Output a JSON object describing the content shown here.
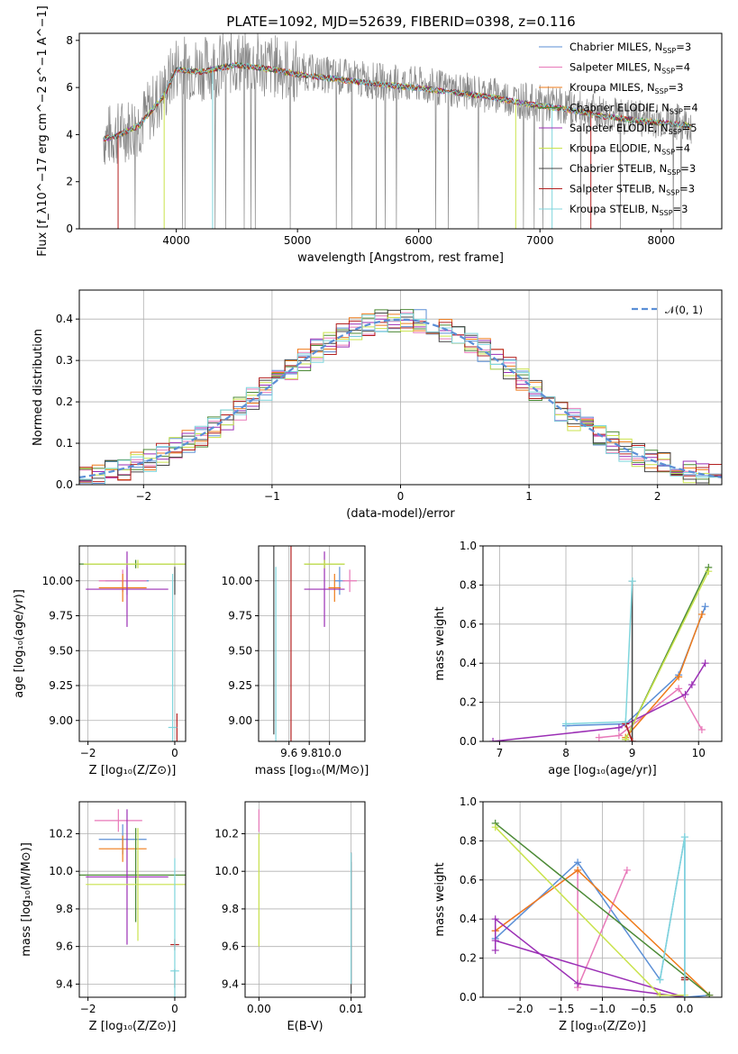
{
  "colors": {
    "Chabrier MILES": "#5b8fd6",
    "Salpeter MILES": "#e879b9",
    "Kroupa MILES": "#ef7b1a",
    "Chabrier ELODIE": "#4c8a36",
    "Salpeter ELODIE": "#9b2fb5",
    "Kroupa ELODIE": "#c9e34c",
    "Chabrier STELIB": "#444444",
    "Salpeter STELIB": "#b32020",
    "Kroupa STELIB": "#7fd6dd",
    "gauss": "#5b8fd6"
  },
  "chart_data": [
    {
      "id": "spectrum",
      "type": "line",
      "title": "PLATE=1092, MJD=52639, FIBERID=0398, z=0.116",
      "xlabel": "wavelength [Angstrom, rest frame]",
      "ylabel": "Flux [f_λ10^−17 erg cm^−2 s^−1 A^−1]",
      "xlim": [
        3200,
        8500
      ],
      "ylim": [
        0,
        8.3
      ],
      "xticks": [
        "4000",
        "5000",
        "6000",
        "7000",
        "8000"
      ],
      "yticks": [
        "0",
        "2",
        "4",
        "6",
        "8"
      ],
      "grid": false,
      "legend_position": "right",
      "legend": [
        {
          "base": "Chabrier MILES, N",
          "sub": "SSP",
          "tail": "=3"
        },
        {
          "base": "Salpeter MILES, N",
          "sub": "SSP",
          "tail": "=4"
        },
        {
          "base": "Kroupa MILES, N",
          "sub": "SSP",
          "tail": "=3"
        },
        {
          "base": "Chabrier ELODIE, N",
          "sub": "SSP",
          "tail": "=4"
        },
        {
          "base": "Salpeter ELODIE, N",
          "sub": "SSP",
          "tail": "=5"
        },
        {
          "base": "Kroupa ELODIE, N",
          "sub": "SSP",
          "tail": "=4"
        },
        {
          "base": "Chabrier STELIB, N",
          "sub": "SSP",
          "tail": "=3"
        },
        {
          "base": "Salpeter STELIB, N",
          "sub": "SSP",
          "tail": "=3"
        },
        {
          "base": "Kroupa STELIB, N",
          "sub": "SSP",
          "tail": "=3"
        }
      ],
      "data_envelope": {
        "x": [
          3400,
          3500,
          3700,
          3900,
          4000,
          4200,
          4500,
          4800,
          5000,
          5300,
          5600,
          6000,
          6300,
          6600,
          6900,
          7200,
          7500,
          7800,
          8000,
          8200,
          8250
        ],
        "y": [
          3.9,
          4.0,
          4.5,
          5.8,
          6.9,
          6.8,
          7.1,
          6.9,
          6.7,
          6.5,
          6.3,
          6.1,
          5.9,
          5.7,
          5.4,
          5.2,
          4.9,
          4.7,
          4.6,
          4.5,
          4.4
        ]
      }
    },
    {
      "id": "residuals",
      "type": "area",
      "xlabel": "(data-model)/error",
      "ylabel": "Normed distribution",
      "xlim": [
        -2.5,
        2.5
      ],
      "ylim": [
        0,
        0.47
      ],
      "xticks": [
        "−2",
        "−1",
        "0",
        "1",
        "2"
      ],
      "yticks": [
        "0.0",
        "0.1",
        "0.2",
        "0.3",
        "0.4"
      ],
      "grid": true,
      "legend_position": "top-right",
      "gauss_label": "𝒩(0, 1)",
      "bin_width": 0.1,
      "bin_start": -2.5
    },
    {
      "id": "age-Z",
      "type": "scatter",
      "xlabel": "Z [log₁₀(Z/Z⊙)]",
      "ylabel": "age  [log₁₀(age/yr)]",
      "xlim": [
        -2.2,
        0.25
      ],
      "ylim": [
        8.85,
        10.25
      ],
      "xticks": [
        "−2",
        "0"
      ],
      "yticks": [
        "9.00",
        "9.25",
        "9.50",
        "9.75",
        "10.00"
      ],
      "grid": true,
      "points": [
        {
          "model": "Chabrier MILES",
          "x": -1.1,
          "xerr": 0.5,
          "y": 10.0,
          "yerr": 0.1
        },
        {
          "model": "Salpeter MILES",
          "x": -1.2,
          "xerr": 0.55,
          "y": 10.0,
          "yerr": 0.08
        },
        {
          "model": "Kroupa MILES",
          "x": -1.2,
          "xerr": 0.55,
          "y": 9.95,
          "yerr": 0.1
        },
        {
          "model": "Chabrier ELODIE",
          "x": -0.9,
          "xerr": 1.3,
          "y": 10.12,
          "yerr": 0.03
        },
        {
          "model": "Salpeter ELODIE",
          "x": -1.1,
          "xerr": 0.95,
          "y": 9.94,
          "yerr": 0.27
        },
        {
          "model": "Kroupa ELODIE",
          "x": -0.85,
          "xerr": 1.25,
          "y": 10.12,
          "yerr": 0.03
        },
        {
          "model": "Chabrier STELIB",
          "x": 0.0,
          "xerr": 0.0,
          "y": 10.0,
          "yerr": 0.1
        },
        {
          "model": "Salpeter STELIB",
          "x": 0.05,
          "xerr": 0.0,
          "y": 8.95,
          "yerr": 0.1
        },
        {
          "model": "Kroupa STELIB",
          "x": -0.05,
          "xerr": 0.1,
          "y": 8.95,
          "yerr": 1.1
        }
      ]
    },
    {
      "id": "age-mass",
      "type": "scatter",
      "xlabel": "mass [log₁₀(M/M⊙)]",
      "ylabel": "",
      "xlim": [
        9.3,
        10.35
      ],
      "ylim": [
        8.85,
        10.25
      ],
      "xticks": [
        "9.6",
        "9.8",
        "10.0"
      ],
      "yticks": [
        "9.00",
        "9.25",
        "9.50",
        "9.75",
        "10.00"
      ],
      "grid": true,
      "points": [
        {
          "model": "Chabrier MILES",
          "x": 10.1,
          "xerr": 0.05,
          "y": 10.0,
          "yerr": 0.1
        },
        {
          "model": "Salpeter MILES",
          "x": 10.2,
          "xerr": 0.07,
          "y": 10.0,
          "yerr": 0.08
        },
        {
          "model": "Kroupa MILES",
          "x": 10.05,
          "xerr": 0.06,
          "y": 9.95,
          "yerr": 0.1
        },
        {
          "model": "Chabrier ELODIE",
          "x": 9.95,
          "xerr": 0.2,
          "y": 10.12,
          "yerr": 0.03
        },
        {
          "model": "Salpeter ELODIE",
          "x": 9.95,
          "xerr": 0.2,
          "y": 9.94,
          "yerr": 0.27
        },
        {
          "model": "Kroupa ELODIE",
          "x": 9.95,
          "xerr": 0.2,
          "y": 10.12,
          "yerr": 0.03
        },
        {
          "model": "Chabrier STELIB",
          "x": 9.45,
          "xerr": 0.0,
          "y": 10.0,
          "yerr": 1.1
        },
        {
          "model": "Salpeter STELIB",
          "x": 9.62,
          "xerr": 0.0,
          "y": 9.95,
          "yerr": 1.1
        },
        {
          "model": "Kroupa STELIB",
          "x": 9.47,
          "xerr": 0.0,
          "y": 8.95,
          "yerr": 1.15
        }
      ]
    },
    {
      "id": "weight-age",
      "type": "line",
      "xlabel": "age  [log₁₀(age/yr)]",
      "ylabel": "mass weight",
      "xlim": [
        6.75,
        10.35
      ],
      "ylim": [
        0,
        1.0
      ],
      "xticks": [
        "7",
        "8",
        "9",
        "10"
      ],
      "yticks": [
        "0.0",
        "0.2",
        "0.4",
        "0.6",
        "0.8",
        "1.0"
      ],
      "grid": true,
      "series": [
        {
          "model": "Chabrier MILES",
          "x": [
            8.0,
            8.9,
            9.7,
            10.1
          ],
          "y": [
            0.08,
            0.09,
            0.34,
            0.69
          ]
        },
        {
          "model": "Salpeter MILES",
          "x": [
            8.5,
            8.8,
            9.7,
            10.05
          ],
          "y": [
            0.02,
            0.03,
            0.27,
            0.06
          ]
        },
        {
          "model": "Kroupa MILES",
          "x": [
            8.9,
            9.7,
            10.05
          ],
          "y": [
            0.02,
            0.33,
            0.65
          ]
        },
        {
          "model": "Chabrier ELODIE",
          "x": [
            8.9,
            10.15
          ],
          "y": [
            0.01,
            0.89
          ]
        },
        {
          "model": "Salpeter ELODIE",
          "x": [
            6.9,
            8.8,
            9.8,
            9.9,
            10.1
          ],
          "y": [
            0.0,
            0.07,
            0.24,
            0.29,
            0.4
          ]
        },
        {
          "model": "Kroupa ELODIE",
          "x": [
            8.9,
            10.15
          ],
          "y": [
            0.01,
            0.87
          ]
        },
        {
          "model": "Chabrier STELIB",
          "x": [
            8.9,
            9.0,
            9.0
          ],
          "y": [
            0.09,
            0.0,
            0.82
          ]
        },
        {
          "model": "Salpeter STELIB",
          "x": [
            8.9,
            9.0
          ],
          "y": [
            0.09,
            0.0
          ]
        },
        {
          "model": "Kroupa STELIB",
          "x": [
            8.0,
            8.9,
            9.0
          ],
          "y": [
            0.09,
            0.1,
            0.82
          ]
        }
      ]
    },
    {
      "id": "mass-Z",
      "type": "scatter",
      "xlabel": "Z [log₁₀(Z/Z⊙)]",
      "ylabel": "mass [log₁₀(M/M⊙)]",
      "xlim": [
        -2.2,
        0.25
      ],
      "ylim": [
        9.33,
        10.37
      ],
      "xticks": [
        "−2",
        "0"
      ],
      "yticks": [
        "9.4",
        "9.6",
        "9.8",
        "10.0",
        "10.2"
      ],
      "grid": true,
      "points": [
        {
          "model": "Chabrier MILES",
          "x": -1.2,
          "xerr": 0.55,
          "y": 10.17,
          "yerr": 0.08
        },
        {
          "model": "Salpeter MILES",
          "x": -1.3,
          "xerr": 0.55,
          "y": 10.27,
          "yerr": 0.06
        },
        {
          "model": "Kroupa MILES",
          "x": -1.2,
          "xerr": 0.55,
          "y": 10.12,
          "yerr": 0.07
        },
        {
          "model": "Chabrier ELODIE",
          "x": -0.9,
          "xerr": 1.3,
          "y": 9.98,
          "yerr": 0.25
        },
        {
          "model": "Salpeter ELODIE",
          "x": -1.1,
          "xerr": 0.95,
          "y": 9.97,
          "yerr": 0.36
        },
        {
          "model": "Kroupa ELODIE",
          "x": -0.85,
          "xerr": 1.2,
          "y": 9.93,
          "yerr": 0.3
        },
        {
          "model": "Chabrier STELIB",
          "x": 0.0,
          "xerr": 0.0,
          "y": 9.43,
          "yerr": 0.05
        },
        {
          "model": "Salpeter STELIB",
          "x": 0.0,
          "xerr": 0.1,
          "y": 9.61,
          "yerr": 0.03
        },
        {
          "model": "Kroupa STELIB",
          "x": 0.0,
          "xerr": 0.1,
          "y": 9.47,
          "yerr": 0.6
        }
      ]
    },
    {
      "id": "mass-EBV",
      "type": "scatter",
      "xlabel": "E(B-V)",
      "ylabel": "",
      "xlim": [
        -0.0015,
        0.0115
      ],
      "ylim": [
        9.33,
        10.37
      ],
      "xticks": [
        "0.00",
        "0.01"
      ],
      "yticks": [
        "9.4",
        "9.6",
        "9.8",
        "10.0",
        "10.2"
      ],
      "grid": true,
      "points": [
        {
          "model": "Salpeter MILES",
          "x": 0.0,
          "xerr": 0.0,
          "y": 10.27,
          "yerr": 0.06
        },
        {
          "model": "Kroupa ELODIE",
          "x": 0.0,
          "xerr": 0.0,
          "y": 9.9,
          "yerr": 0.3
        },
        {
          "model": "Chabrier STELIB",
          "x": 0.01,
          "xerr": 0.0,
          "y": 9.7,
          "yerr": 0.35
        },
        {
          "model": "Salpeter STELIB",
          "x": 0.01,
          "xerr": 0.0,
          "y": 9.75,
          "yerr": 0.35
        },
        {
          "model": "Kroupa STELIB",
          "x": 0.01,
          "xerr": 0.0,
          "y": 9.75,
          "yerr": 0.35
        }
      ]
    },
    {
      "id": "weight-Z",
      "type": "line",
      "xlabel": "Z [log₁₀(Z/Z⊙)]",
      "ylabel": "mass weight",
      "xlim": [
        -2.45,
        0.45
      ],
      "ylim": [
        0,
        1.0
      ],
      "xticks": [
        "−2.0",
        "−1.5",
        "−1.0",
        "−0.5",
        "0.0"
      ],
      "yticks": [
        "0.0",
        "0.2",
        "0.4",
        "0.6",
        "0.8",
        "1.0"
      ],
      "grid": true,
      "series": [
        {
          "model": "Chabrier MILES",
          "x": [
            -2.3,
            -1.3,
            -0.3,
            0.0,
            0.0,
            0.3
          ],
          "y": [
            0.3,
            0.69,
            0.09,
            0.82,
            0.0,
            0.01
          ]
        },
        {
          "model": "Salpeter MILES",
          "x": [
            -2.3,
            -1.3,
            -1.3,
            -0.7
          ],
          "y": [
            0.34,
            0.65,
            0.05,
            0.65
          ]
        },
        {
          "model": "Kroupa MILES",
          "x": [
            -2.3,
            -1.3,
            0.3
          ],
          "y": [
            0.34,
            0.65,
            0.01
          ]
        },
        {
          "model": "Chabrier ELODIE",
          "x": [
            -2.3,
            0.3
          ],
          "y": [
            0.89,
            0.01
          ]
        },
        {
          "model": "Salpeter ELODIE",
          "x": [
            -2.3,
            -2.3,
            -1.3,
            0.0,
            -2.3
          ],
          "y": [
            0.24,
            0.4,
            0.07,
            0.0,
            0.29
          ]
        },
        {
          "model": "Kroupa ELODIE",
          "x": [
            -2.3,
            -0.3,
            0.0
          ],
          "y": [
            0.87,
            0.01,
            0.01
          ]
        },
        {
          "model": "Chabrier STELIB",
          "x": [
            0.0,
            0.0
          ],
          "y": [
            0.09,
            0.1
          ]
        },
        {
          "model": "Salpeter STELIB",
          "x": [
            0.0,
            0.0
          ],
          "y": [
            0.09,
            0.1
          ]
        },
        {
          "model": "Kroupa STELIB",
          "x": [
            -0.3,
            0.0,
            0.0
          ],
          "y": [
            0.09,
            0.82,
            0.0
          ]
        }
      ]
    }
  ]
}
